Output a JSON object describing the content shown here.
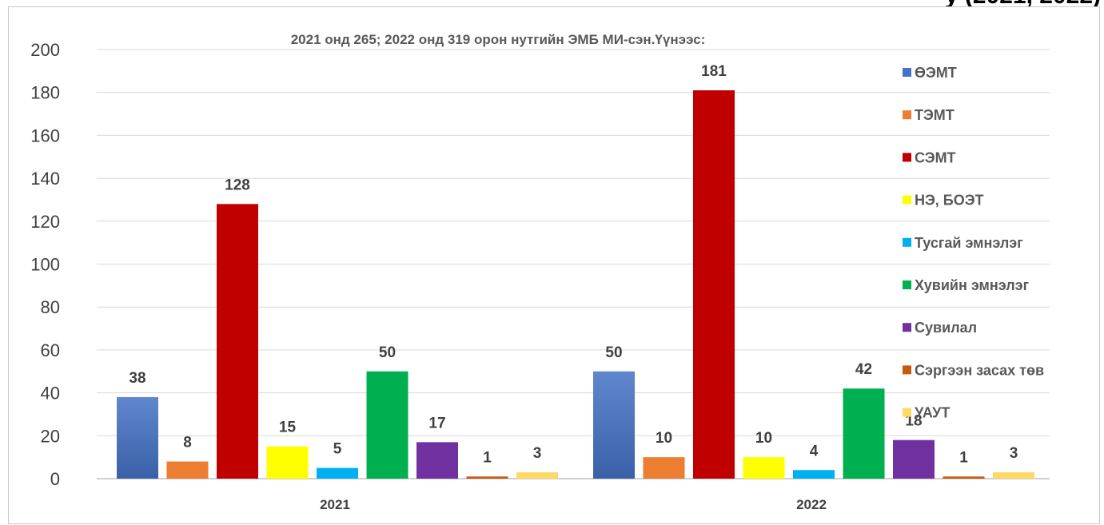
{
  "top_cut_text": "у (2021, 2022)",
  "chart_data": {
    "type": "bar",
    "title": "2021 онд 265; 2022 онд 319 орон нутгийн ЭМБ МИ-сэн.Үүнээс:",
    "xlabel": "",
    "ylabel": "",
    "ylim": [
      0,
      200
    ],
    "yticks": [
      "0",
      "20",
      "40",
      "60",
      "80",
      "100",
      "120",
      "140",
      "160",
      "180",
      "200"
    ],
    "grid": true,
    "legend_position": "right",
    "categories": [
      "2021",
      "2022"
    ],
    "series": [
      {
        "name": "ӨЭМТ",
        "values": [
          38,
          50
        ],
        "color": "#4472C4"
      },
      {
        "name": "ТЭМТ",
        "values": [
          8,
          10
        ],
        "color": "#ED7D31"
      },
      {
        "name": "СЭМТ",
        "values": [
          128,
          181
        ],
        "color": "#C00000"
      },
      {
        "name": "НЭ, БОЭТ",
        "values": [
          15,
          10
        ],
        "color": "#FFFF00"
      },
      {
        "name": "Тусгай эмнэлэг",
        "values": [
          5,
          4
        ],
        "color": "#00B0F0"
      },
      {
        "name": "Хувийн эмнэлэг",
        "values": [
          50,
          42
        ],
        "color": "#00B050"
      },
      {
        "name": "Сувилал",
        "values": [
          17,
          18
        ],
        "color": "#7030A0"
      },
      {
        "name": "Сэргээн засах төв",
        "values": [
          1,
          1
        ],
        "color": "#C55A11"
      },
      {
        "name": "УАУТ",
        "values": [
          3,
          3
        ],
        "color": "#FFD966"
      }
    ]
  }
}
